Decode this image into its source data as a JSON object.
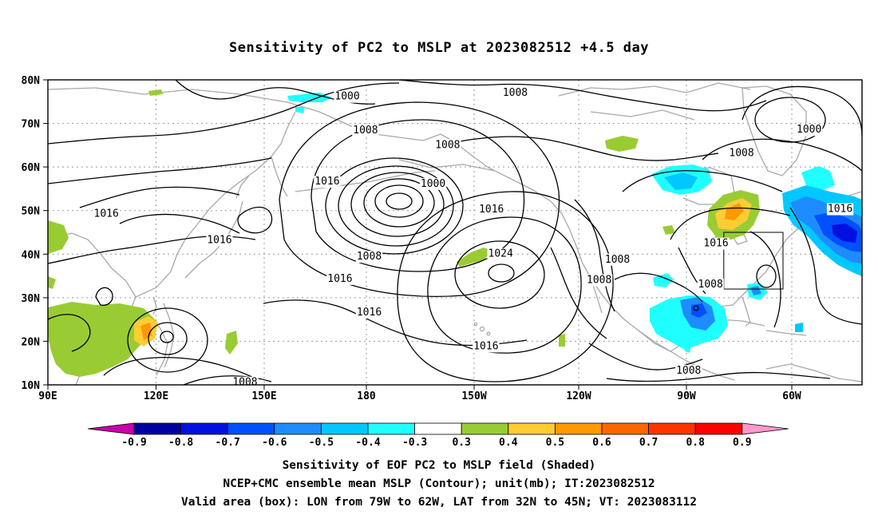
{
  "title": "Sensitivity of PC2 to MSLP at 2023082512 +4.5 day",
  "latitude_labels": [
    "80N",
    "70N",
    "60N",
    "50N",
    "40N",
    "30N",
    "20N",
    "10N"
  ],
  "longitude_labels": [
    "90E",
    "120E",
    "150E",
    "180",
    "150W",
    "120W",
    "90W",
    "60W"
  ],
  "contour_labels": [
    {
      "text": "1000",
      "lon": 172,
      "lat": 76.2
    },
    {
      "text": "1008",
      "lon": 177,
      "lat": 68.5
    },
    {
      "text": "1008",
      "lon": -142,
      "lat": 77.1
    },
    {
      "text": "1008",
      "lon": 199.5,
      "lat": 65.1
    },
    {
      "text": "1000",
      "lon": 195.5,
      "lat": 56.2
    },
    {
      "text": "1016",
      "lon": 106,
      "lat": 49.3
    },
    {
      "text": "1016",
      "lon": 137,
      "lat": 43.3
    },
    {
      "text": "1016",
      "lon": 166.5,
      "lat": 56.7
    },
    {
      "text": "1016",
      "lon": -148.5,
      "lat": 50.3
    },
    {
      "text": "1024",
      "lon": -146,
      "lat": 40.1
    },
    {
      "text": "1008",
      "lon": 178,
      "lat": 39.5
    },
    {
      "text": "1016",
      "lon": 170,
      "lat": 34.4
    },
    {
      "text": "1016",
      "lon": 178,
      "lat": 26.7
    },
    {
      "text": "1016",
      "lon": -150,
      "lat": 18.9
    },
    {
      "text": "1008",
      "lon": -114,
      "lat": 38.8
    },
    {
      "text": "1008",
      "lon": -119,
      "lat": 34.1
    },
    {
      "text": "1008",
      "lon": -94.5,
      "lat": 13.3
    },
    {
      "text": "1008",
      "lon": -80,
      "lat": 63.2
    },
    {
      "text": "1000",
      "lon": -61.5,
      "lat": 68.6
    },
    {
      "text": "1016",
      "lon": -53,
      "lat": 50.4
    },
    {
      "text": "1016",
      "lon": -87,
      "lat": 42.5
    },
    {
      "text": "1008",
      "lon": -88.5,
      "lat": 33.1
    },
    {
      "text": "1008",
      "lon": 144,
      "lat": 10.6
    }
  ],
  "valid_box": {
    "lon_west": -79,
    "lon_east": -62,
    "lat_south": 32,
    "lat_north": 45
  },
  "colorbar": {
    "labels": [
      "-0.9",
      "-0.8",
      "-0.7",
      "-0.6",
      "-0.5",
      "-0.4",
      "-0.3",
      "0.3",
      "0.4",
      "0.5",
      "0.6",
      "0.7",
      "0.8",
      "0.9"
    ],
    "colors": [
      "#cc00aa",
      "#0000a0",
      "#0010e0",
      "#0050ff",
      "#1e8cff",
      "#00c8ff",
      "#20ffff",
      "#ffffff",
      "#99cc33",
      "#ffcc33",
      "#ff9900",
      "#ff6600",
      "#ff3300",
      "#ff0000",
      "#ff99cc"
    ]
  },
  "footer": {
    "line1": "Sensitivity of EOF PC2 to MSLP field (Shaded)",
    "line2": "NCEP+CMC ensemble mean MSLP (Contour); unit(mb); IT:2023082512",
    "line3": "Valid area (box): LON from 79W to 62W, LAT from 32N to 45N; VT: 2023083112"
  }
}
